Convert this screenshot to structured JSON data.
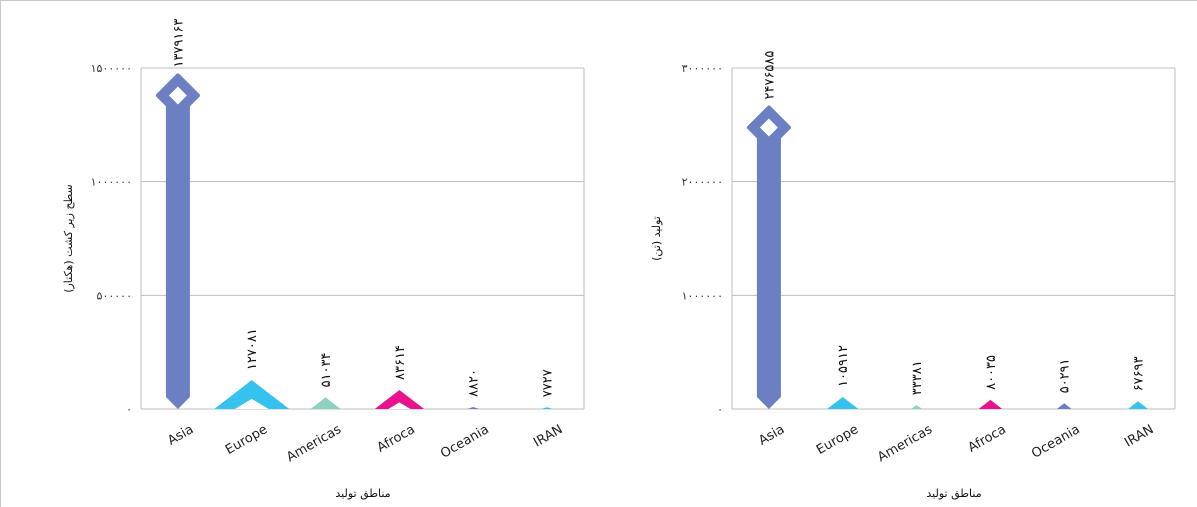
{
  "chart_data": [
    {
      "type": "bar",
      "categories": [
        "Asia",
        "Europe",
        "Americas",
        "Afroca",
        "Oceania",
        "IRAN"
      ],
      "values": [
        1379163,
        127081,
        51034,
        83614,
        8820,
        7727
      ],
      "value_labels": [
        "۱۳۷۹۱۶۳",
        "۱۲۷۰۸۱",
        "۵۱۰۳۴",
        "۸۳۶۱۴",
        "۸۸۲۰",
        "۷۷۲۷"
      ],
      "colors": [
        "#6b7fc2",
        "#35c2ee",
        "#8fd1c0",
        "#e8128c",
        "#6b7fc2",
        "#35c2ee"
      ],
      "ylim": [
        0,
        1500000
      ],
      "yticks": [
        0,
        500000,
        1000000,
        1500000
      ],
      "ytick_labels": [
        "۰",
        "۵۰۰۰۰۰",
        "۱۰۰۰۰۰۰",
        "۱۵۰۰۰۰۰"
      ],
      "ylabel": "سطح زیر کشت (هکتار)",
      "xlabel": "مناطق تولید",
      "grid": true
    },
    {
      "type": "bar",
      "categories": [
        "Asia",
        "Europe",
        "Americas",
        "Afroca",
        "Oceania",
        "IRAN"
      ],
      "values": [
        2476585,
        105912,
        33381,
        80035,
        50291,
        67693
      ],
      "value_labels": [
        "۲۴۷۶۵۸۵",
        "۱۰۵۹۱۲",
        "۳۳۳۸۱",
        "۸۰۰۳۵",
        "۵۰۲۹۱",
        "۶۷۶۹۳"
      ],
      "colors": [
        "#6b7fc2",
        "#35c2ee",
        "#8fd1c0",
        "#e8128c",
        "#6b7fc2",
        "#35c2ee"
      ],
      "ylim": [
        0,
        3000000
      ],
      "yticks": [
        0,
        1000000,
        2000000,
        3000000
      ],
      "ytick_labels": [
        "۰",
        "۱۰۰۰۰۰۰",
        "۲۰۰۰۰۰۰",
        "۳۰۰۰۰۰۰"
      ],
      "ylabel": "تولید (تن)",
      "xlabel": "مناطق تولید",
      "grid": true
    }
  ]
}
